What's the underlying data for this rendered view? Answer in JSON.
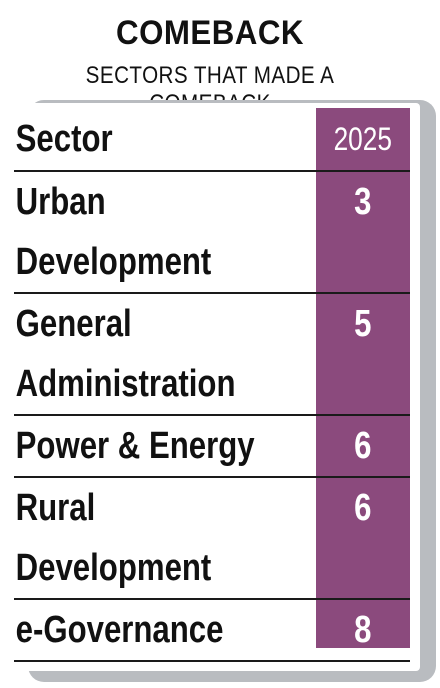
{
  "header": {
    "title": "COMEBACK",
    "subtitle": "SECTORS THAT MADE A COMEBACK"
  },
  "table": {
    "columns": [
      "Sector",
      "2025"
    ],
    "rows": [
      {
        "sector_lines": [
          "Urban",
          "Development"
        ],
        "value": "3"
      },
      {
        "sector_lines": [
          "General",
          "Administration"
        ],
        "value": "5"
      },
      {
        "sector_lines": [
          "Power & Energy"
        ],
        "value": "6"
      },
      {
        "sector_lines": [
          "Rural",
          "Development"
        ],
        "value": "6"
      },
      {
        "sector_lines": [
          "e-Governance"
        ],
        "value": "8"
      }
    ]
  },
  "colors": {
    "accent": "#8b4a7d",
    "shadow": "#b9bcc0",
    "text": "#111111",
    "rule": "#1a1a1a"
  }
}
